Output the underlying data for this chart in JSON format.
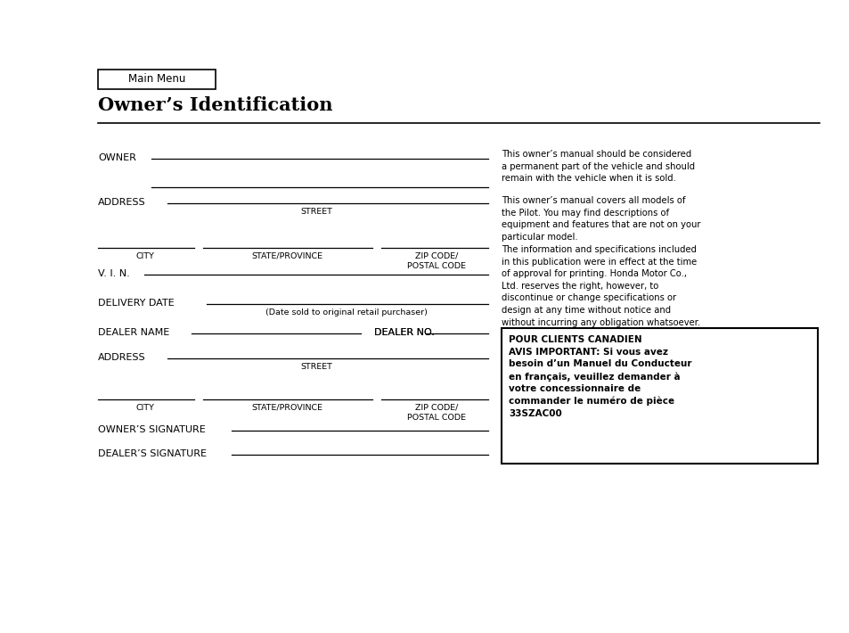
{
  "title": "Owner’s Identification",
  "main_menu_label": "Main Menu",
  "bg_color": "#ffffff",
  "text_color": "#000000",
  "right_text_paragraphs": [
    "This owner’s manual should be considered\na permanent part of the vehicle and should\nremain with the vehicle when it is sold.",
    "This owner’s manual covers all models of\nthe Pilot. You may find descriptions of\nequipment and features that are not on your\nparticular model.",
    "The information and specifications included\nin this publication were in effect at the time\nof approval for printing. Honda Motor Co.,\nLtd. reserves the right, however, to\ndiscontinue or change specifications or\ndesign at any time without notice and\nwithout incurring any obligation whatsoever."
  ],
  "canadian_box_text": "POUR CLIENTS CANADIEN\nAVIS IMPORTANT: Si vous avez\nbesoin d’un Manuel du Conducteur\nen français, veuillez demander à\nvotre concessionnaire de\ncommander le numéro de pièce\n33SZAC00"
}
